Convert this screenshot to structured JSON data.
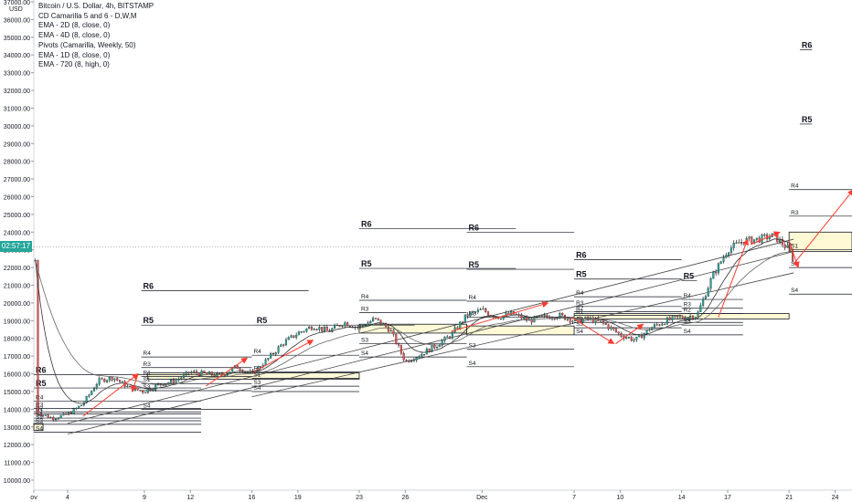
{
  "header": {
    "symbol_line": "Bitcoin / U.S. Dollar, 4h, BITSTAMP",
    "indicators": [
      "CD Camarilla 5 and 6 - D,W,M",
      "EMA - 2D (8, close, 0)",
      "EMA - 4D (8, close, 0)",
      "Pivots (Camarilla, Weekly, 50)",
      "EMA - 1D (8, close, 0)",
      "EMA - 720 (8, high, 0)"
    ]
  },
  "colors": {
    "candle_up": "#26a69a",
    "candle_down": "#ef5350",
    "candle_body": "#222222",
    "pivot_line": "#131722",
    "arrow": "#ff3b30",
    "zone_fill": "#fff9d6",
    "ema": "#444444",
    "price_tag": "#26a69a",
    "axis_text": "#131722"
  },
  "price_axis": {
    "currency": "USD",
    "current_time_tag": "02:57:17",
    "current_price": 23170
  },
  "chart_data": {
    "type": "candlestick",
    "title": "Bitcoin / U.S. Dollar, 4h, BITSTAMP",
    "y_axis_labels": [
      "10000.00",
      "11000.00",
      "12000.00",
      "13000.00",
      "14000.00",
      "15000.00",
      "16000.00",
      "17000.00",
      "18000.00",
      "19000.00",
      "20000.00",
      "21000.00",
      "22000.00",
      "23000.00",
      "24000.00",
      "25000.00",
      "26000.00",
      "27000.00",
      "28000.00",
      "29000.00",
      "30000.00",
      "31000.00",
      "32000.00",
      "33000.00",
      "34000.00",
      "35000.00",
      "36000.00",
      "37000.00"
    ],
    "ylim": [
      9800,
      37200
    ],
    "x_axis_labels": [
      {
        "label": "ov",
        "day": -2.2
      },
      {
        "label": "4",
        "day": 0
      },
      {
        "label": "9",
        "day": 5
      },
      {
        "label": "12",
        "day": 8
      },
      {
        "label": "16",
        "day": 12
      },
      {
        "label": "19",
        "day": 15
      },
      {
        "label": "23",
        "day": 19
      },
      {
        "label": "26",
        "day": 22
      },
      {
        "label": "Dec",
        "day": 27
      },
      {
        "label": "7",
        "day": 33
      },
      {
        "label": "10",
        "day": 36
      },
      {
        "label": "14",
        "day": 40
      },
      {
        "label": "17",
        "day": 43
      },
      {
        "label": "21",
        "day": 47
      },
      {
        "label": "24",
        "day": 50
      }
    ],
    "xlim": [
      -2.2,
      51.1
    ],
    "price_path": [
      [
        -2,
        13800
      ],
      [
        -1,
        13500
      ],
      [
        0,
        13700
      ],
      [
        1,
        14300
      ],
      [
        2,
        15600
      ],
      [
        3,
        15800
      ],
      [
        4,
        15200
      ],
      [
        5,
        15000
      ],
      [
        6,
        15400
      ],
      [
        7,
        15600
      ],
      [
        8,
        16100
      ],
      [
        9,
        16000
      ],
      [
        10,
        15900
      ],
      [
        11,
        16400
      ],
      [
        12,
        16000
      ],
      [
        13,
        16800
      ],
      [
        14,
        17700
      ],
      [
        15,
        18300
      ],
      [
        16,
        18700
      ],
      [
        17,
        18400
      ],
      [
        18,
        18900
      ],
      [
        19,
        18600
      ],
      [
        20,
        19100
      ],
      [
        21,
        18500
      ],
      [
        22,
        16700
      ],
      [
        23,
        17100
      ],
      [
        24,
        17600
      ],
      [
        25,
        18200
      ],
      [
        26,
        19300
      ],
      [
        27,
        19600
      ],
      [
        28,
        19200
      ],
      [
        29,
        19400
      ],
      [
        30,
        19000
      ],
      [
        31,
        19200
      ],
      [
        32,
        19300
      ],
      [
        33,
        19000
      ],
      [
        34,
        19100
      ],
      [
        35,
        18800
      ],
      [
        36,
        18200
      ],
      [
        37,
        17900
      ],
      [
        38,
        18600
      ],
      [
        39,
        19000
      ],
      [
        40,
        19200
      ],
      [
        41,
        19300
      ],
      [
        42,
        21500
      ],
      [
        43,
        23000
      ],
      [
        44,
        23500
      ],
      [
        45,
        23600
      ],
      [
        46,
        23800
      ],
      [
        47,
        23000
      ],
      [
        47.3,
        22400
      ]
    ],
    "pivot_levels": [
      {
        "label": "R6",
        "x": [
          -2.2,
          8.7
        ],
        "y": 15950
      },
      {
        "label": "R5",
        "x": [
          -2.2,
          8.7
        ],
        "y": 15200
      },
      {
        "label": "R4",
        "x": [
          -2.2,
          8.7
        ],
        "y": 14460
      },
      {
        "label": "R3",
        "x": [
          -2.2,
          8.7
        ],
        "y": 14050
      },
      {
        "label": "R2",
        "x": [
          -2.2,
          8.7
        ],
        "y": 13850
      },
      {
        "label": "R1",
        "x": [
          -2.2,
          8.7
        ],
        "y": 13730
      },
      {
        "label": "S1",
        "x": [
          -2.2,
          8.7
        ],
        "y": 13500
      },
      {
        "label": "S2",
        "x": [
          -2.2,
          8.7
        ],
        "y": 13350
      },
      {
        "label": "S3",
        "x": [
          -2.2,
          8.7
        ],
        "y": 13150
      },
      {
        "label": "S4",
        "x": [
          -2.2,
          8.7
        ],
        "y": 12700
      },
      {
        "label": "R6",
        "x": [
          4.8,
          15.7
        ],
        "y": 20700
      },
      {
        "label": "R5",
        "x": [
          4.8,
          15.7
        ],
        "y": 18750
      },
      {
        "label": "R4",
        "x": [
          4.8,
          12
        ],
        "y": 16950
      },
      {
        "label": "R3",
        "x": [
          4.8,
          12
        ],
        "y": 16350
      },
      {
        "label": "R1",
        "x": [
          4.8,
          12
        ],
        "y": 15850
      },
      {
        "label": "S1",
        "x": [
          4.8,
          12
        ],
        "y": 15450
      },
      {
        "label": "S3",
        "x": [
          4.8,
          12
        ],
        "y": 15050
      },
      {
        "label": "S4",
        "x": [
          4.8,
          12
        ],
        "y": 14000
      },
      {
        "label": "R4",
        "x": [
          12,
          19
        ],
        "y": 17050
      },
      {
        "label": "R3",
        "x": [
          12,
          19
        ],
        "y": 16100
      },
      {
        "label": "S1",
        "x": [
          12,
          19
        ],
        "y": 15750
      },
      {
        "label": "S3",
        "x": [
          12,
          19
        ],
        "y": 15300
      },
      {
        "label": "S4",
        "x": [
          12,
          19
        ],
        "y": 15000
      },
      {
        "label": "R5",
        "x": [
          12.2,
          22.6
        ],
        "y": 18750
      },
      {
        "label": "R6",
        "x": [
          19,
          29.2
        ],
        "y": 24200
      },
      {
        "label": "R5",
        "x": [
          19,
          29.2
        ],
        "y": 21950
      },
      {
        "label": "R4",
        "x": [
          19,
          26
        ],
        "y": 20150
      },
      {
        "label": "R3",
        "x": [
          19,
          26
        ],
        "y": 19450
      },
      {
        "label": "S3",
        "x": [
          19,
          26
        ],
        "y": 17700
      },
      {
        "label": "S4",
        "x": [
          19,
          26
        ],
        "y": 16950
      },
      {
        "label": "R6",
        "x": [
          26,
          33
        ],
        "y": 24000
      },
      {
        "label": "R5",
        "x": [
          26,
          33
        ],
        "y": 21900
      },
      {
        "label": "R4",
        "x": [
          26,
          33
        ],
        "y": 20100
      },
      {
        "label": "R3",
        "x": [
          26,
          33
        ],
        "y": 19200
      },
      {
        "label": "S3",
        "x": [
          26,
          33
        ],
        "y": 17400
      },
      {
        "label": "S4",
        "x": [
          26,
          33
        ],
        "y": 16400
      },
      {
        "label": "R6",
        "x": [
          33,
          40
        ],
        "y": 22450
      },
      {
        "label": "R5",
        "x": [
          33,
          40
        ],
        "y": 21350
      },
      {
        "label": "R4",
        "x": [
          33,
          40
        ],
        "y": 20350
      },
      {
        "label": "R3",
        "x": [
          33,
          40
        ],
        "y": 19800
      },
      {
        "label": "R2",
        "x": [
          33,
          40
        ],
        "y": 19500
      },
      {
        "label": "R1",
        "x": [
          33,
          40
        ],
        "y": 19300
      },
      {
        "label": "S1",
        "x": [
          33,
          40
        ],
        "y": 18900
      },
      {
        "label": "S3",
        "x": [
          33,
          40
        ],
        "y": 18600
      },
      {
        "label": "S4",
        "x": [
          33,
          40
        ],
        "y": 18200
      },
      {
        "label": "R5",
        "x": [
          40,
          41
        ],
        "y": 21250
      },
      {
        "label": "R4",
        "x": [
          40,
          44
        ],
        "y": 20200
      },
      {
        "label": "R3",
        "x": [
          40,
          44
        ],
        "y": 19700
      },
      {
        "label": "R2",
        "x": [
          40,
          44
        ],
        "y": 19400
      },
      {
        "label": "S1",
        "x": [
          40,
          44
        ],
        "y": 18900
      },
      {
        "label": "S3",
        "x": [
          40,
          44
        ],
        "y": 18750
      },
      {
        "label": "S4",
        "x": [
          40,
          44
        ],
        "y": 18200
      },
      {
        "label": "R6",
        "x": [
          47.7,
          48.5
        ],
        "y": 34300
      },
      {
        "label": "R5",
        "x": [
          47.7,
          48.5
        ],
        "y": 30100
      },
      {
        "label": "R4",
        "x": [
          47,
          51.1
        ],
        "y": 26400
      },
      {
        "label": "R3",
        "x": [
          47,
          51.1
        ],
        "y": 24900
      },
      {
        "label": "S1",
        "x": [
          47,
          51.1
        ],
        "y": 23000
      },
      {
        "label": "S3",
        "x": [
          47,
          51.1
        ],
        "y": 22000
      },
      {
        "label": "S4",
        "x": [
          47,
          51.1
        ],
        "y": 20500
      }
    ],
    "zones": [
      {
        "x": [
          5.2,
          19
        ],
        "y": [
          15700,
          16050
        ]
      },
      {
        "x": [
          19,
          26
        ],
        "y": [
          18300,
          18800
        ]
      },
      {
        "x": [
          26,
          33
        ],
        "y": [
          18200,
          18700
        ]
      },
      {
        "x": [
          33,
          47
        ],
        "y": [
          19100,
          19400
        ]
      },
      {
        "x": [
          47,
          51.1
        ],
        "y": [
          22900,
          24000
        ]
      },
      {
        "x": [
          -2.2,
          -1.6
        ],
        "y": [
          12800,
          13200
        ]
      }
    ],
    "arrows": [
      {
        "from": [
          1,
          13600
        ],
        "to": [
          4.6,
          16000
        ]
      },
      {
        "from": [
          4.6,
          16000
        ],
        "to": [
          4.2,
          15000
        ]
      },
      {
        "from": [
          9,
          15300
        ],
        "to": [
          11.7,
          16900
        ]
      },
      {
        "from": [
          12.1,
          16100
        ],
        "to": [
          16,
          17900
        ]
      },
      {
        "from": [
          25,
          18400
        ],
        "to": [
          31.3,
          20000
        ]
      },
      {
        "from": [
          32.8,
          19200
        ],
        "to": [
          35.6,
          17700
        ]
      },
      {
        "from": [
          35.7,
          17700
        ],
        "to": [
          37.5,
          18800
        ]
      },
      {
        "from": [
          42.4,
          19200
        ],
        "to": [
          44.3,
          23600
        ]
      },
      {
        "from": [
          44.5,
          23300
        ],
        "to": [
          46.4,
          24000
        ]
      },
      {
        "from": [
          47,
          23500
        ],
        "to": [
          47.6,
          22000
        ]
      },
      {
        "from": [
          47.3,
          22200
        ],
        "to": [
          51.2,
          26400
        ]
      }
    ]
  }
}
